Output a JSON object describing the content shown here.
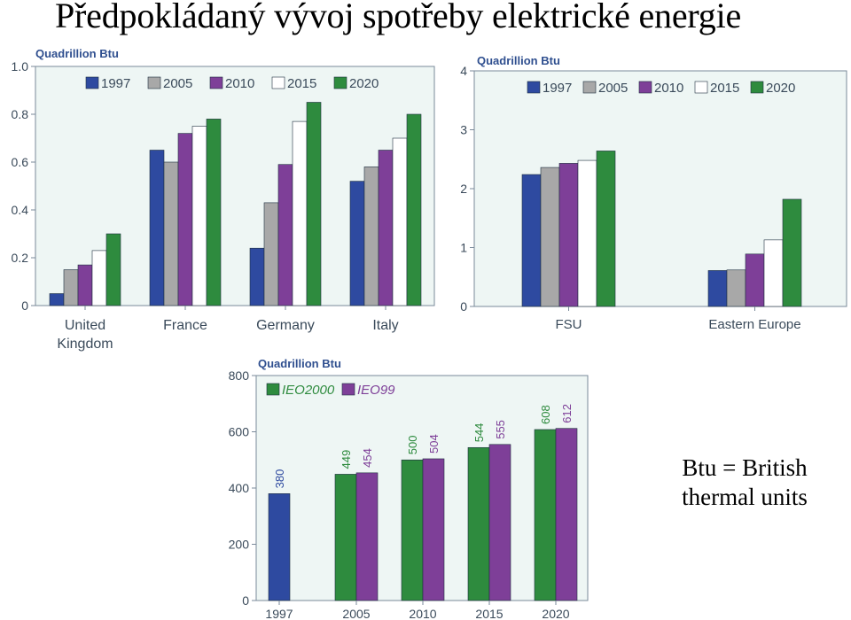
{
  "title": "Předpokládaný vývoj spotřeby elektrické energie",
  "note": "Btu = British thermal units",
  "colors": {
    "plot_bg": "#eef6f4",
    "axis": "#7a8a9a",
    "label": "#3a4a5a",
    "unit_label": "#2f4f8f",
    "c1997": "#2e4aa0",
    "c2005": "#a8a8a8",
    "c2010": "#7e3f98",
    "c2015": "#ffffff",
    "c2020": "#2e8b3e"
  },
  "chart_data": [
    {
      "type": "bar",
      "unit_label": "Quadrillion Btu",
      "categories": [
        [
          "United",
          "Kingdom"
        ],
        [
          "France"
        ],
        [
          "Germany"
        ],
        [
          "Italy"
        ]
      ],
      "ylim": [
        0,
        1.0
      ],
      "yticks": [
        "0",
        "0.2",
        "0.4",
        "0.6",
        "0.8",
        "1.0"
      ],
      "legend_position": "top",
      "series": [
        {
          "name": "1997",
          "color_key": "c1997",
          "values": [
            0.05,
            0.65,
            0.24,
            0.52
          ]
        },
        {
          "name": "2005",
          "color_key": "c2005",
          "values": [
            0.15,
            0.6,
            0.43,
            0.58
          ]
        },
        {
          "name": "2010",
          "color_key": "c2010",
          "values": [
            0.17,
            0.72,
            0.59,
            0.65
          ]
        },
        {
          "name": "2015",
          "color_key": "c2015",
          "values": [
            0.23,
            0.75,
            0.77,
            0.7
          ]
        },
        {
          "name": "2020",
          "color_key": "c2020",
          "values": [
            0.3,
            0.78,
            0.85,
            0.8
          ]
        }
      ]
    },
    {
      "type": "bar",
      "unit_label": "Quadrillion Btu",
      "categories": [
        [
          "FSU"
        ],
        [
          "Eastern Europe"
        ]
      ],
      "ylim": [
        0,
        4
      ],
      "yticks": [
        "0",
        "1",
        "2",
        "3",
        "4"
      ],
      "legend_position": "top-right",
      "series": [
        {
          "name": "1997",
          "color_key": "c1997",
          "values": [
            2.24,
            0.61
          ]
        },
        {
          "name": "2005",
          "color_key": "c2005",
          "values": [
            2.36,
            0.62
          ]
        },
        {
          "name": "2010",
          "color_key": "c2010",
          "values": [
            2.43,
            0.89
          ]
        },
        {
          "name": "2015",
          "color_key": "c2015",
          "values": [
            2.48,
            1.13
          ]
        },
        {
          "name": "2020",
          "color_key": "c2020",
          "values": [
            2.64,
            1.82
          ]
        }
      ]
    },
    {
      "type": "bar",
      "unit_label": "Quadrillion Btu",
      "categories": [
        [
          "1997"
        ],
        [
          "2005"
        ],
        [
          "2010"
        ],
        [
          "2015"
        ],
        [
          "2020"
        ]
      ],
      "ylim": [
        0,
        800
      ],
      "yticks": [
        "0",
        "200",
        "400",
        "600",
        "800"
      ],
      "legend_position": "top-left",
      "series": [
        {
          "name": "IEO2000",
          "color_key": "c2020",
          "values": [
            380,
            449,
            500,
            544,
            608
          ],
          "first_color_key": "c1997"
        },
        {
          "name": "IEO99",
          "color_key": "c2010",
          "values": [
            null,
            454,
            504,
            555,
            612
          ]
        }
      ],
      "data_labels": [
        [
          "380",
          "449",
          "500",
          "544",
          "608"
        ],
        [
          "",
          "454",
          "504",
          "555",
          "612"
        ]
      ]
    }
  ]
}
